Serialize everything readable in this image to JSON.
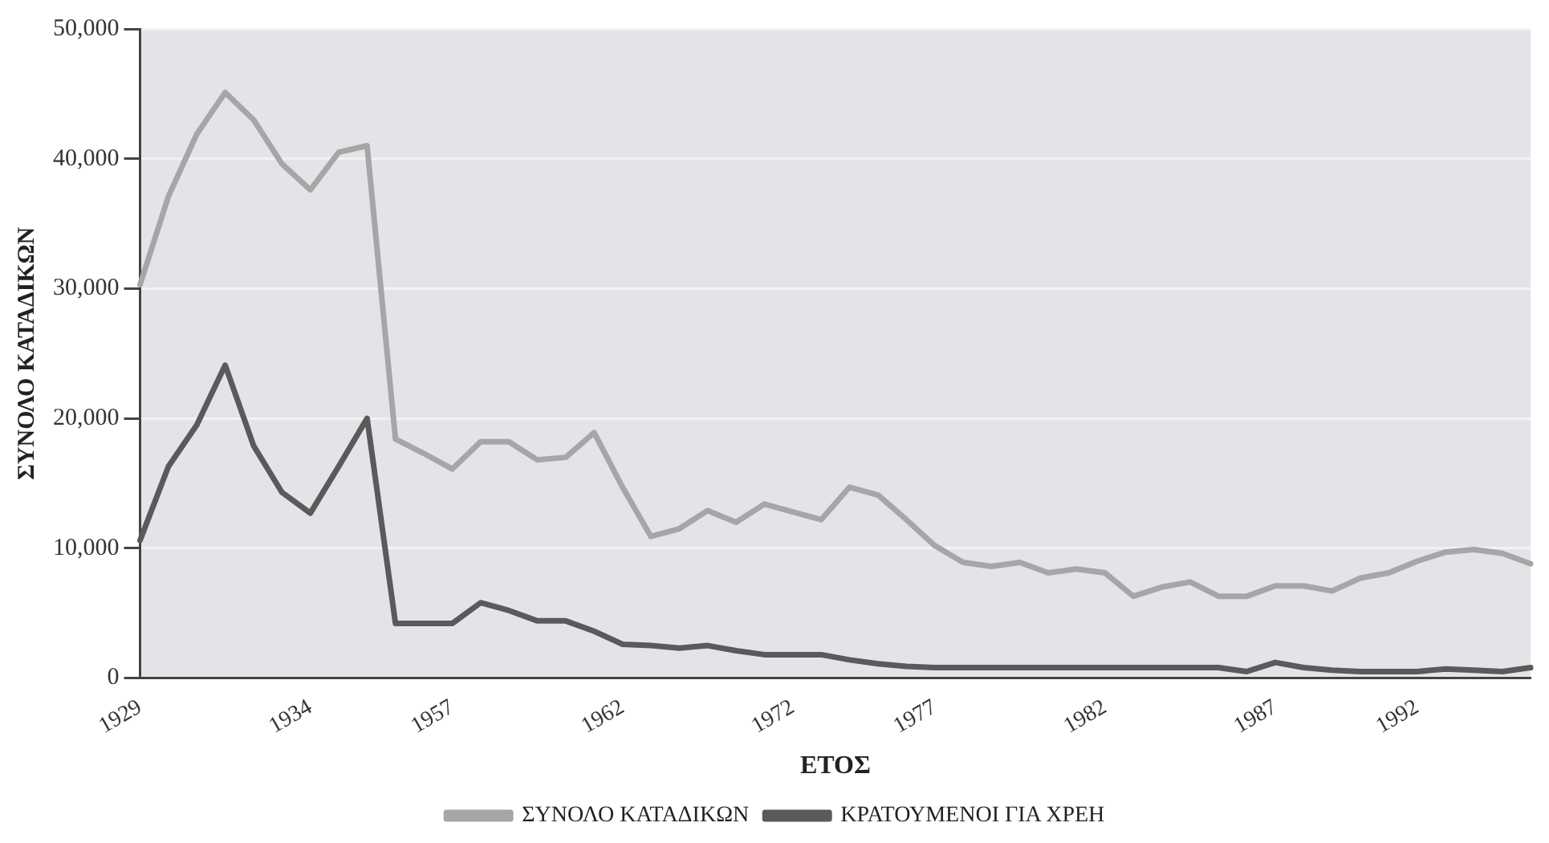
{
  "chart_data": {
    "type": "line",
    "xlabel": "ΕΤΟΣ",
    "ylabel": "ΣΥΝΟΛΟ ΚΑΤΑΔΙΚΩΝ",
    "categories": [
      "1929",
      null,
      null,
      null,
      null,
      null,
      "1934",
      null,
      null,
      null,
      null,
      "1957",
      null,
      null,
      null,
      null,
      null,
      "1962",
      null,
      null,
      null,
      null,
      null,
      "1972",
      null,
      null,
      null,
      null,
      "1977",
      null,
      null,
      null,
      null,
      null,
      "1982",
      null,
      null,
      null,
      null,
      null,
      "1987",
      null,
      null,
      null,
      null,
      "1992",
      null,
      null,
      null,
      null
    ],
    "series": [
      {
        "name": "ΣΥΝΟΛΟ ΚΑΤΑΔΙΚΩΝ",
        "color": "#a6a6a6",
        "values": [
          30300,
          37100,
          41900,
          45100,
          43000,
          39600,
          37600,
          40500,
          41000,
          18400,
          17300,
          16100,
          18200,
          18200,
          16800,
          17000,
          18900,
          14700,
          10900,
          11500,
          12900,
          12000,
          13400,
          12800,
          12200,
          14700,
          14100,
          12200,
          10200,
          8900,
          8600,
          8900,
          8100,
          8400,
          8100,
          6300,
          7000,
          7400,
          6300,
          6300,
          7100,
          7100,
          6700,
          7700,
          8100,
          9000,
          9700,
          9900,
          9600,
          8800
        ]
      },
      {
        "name": "ΚΡΑΤΟΥΜΕΝΟΙ ΓΙΑ ΧΡΕΗ",
        "color": "#5a5a5a",
        "values": [
          10600,
          16300,
          19500,
          24100,
          17900,
          14300,
          12700,
          16300,
          20000,
          4200,
          4200,
          4200,
          5800,
          5200,
          4400,
          4400,
          3600,
          2600,
          2500,
          2300,
          2500,
          2100,
          1800,
          1800,
          1800,
          1400,
          1100,
          900,
          800,
          800,
          800,
          800,
          800,
          800,
          800,
          800,
          800,
          800,
          800,
          500,
          1200,
          800,
          600,
          500,
          500,
          500,
          700,
          600,
          500,
          800
        ]
      }
    ],
    "ylim": [
      0,
      50000
    ],
    "yticks": [
      0,
      {
        "value": 10000,
        "label": "10,000"
      },
      {
        "value": 20000,
        "label": "20,000"
      },
      {
        "value": 30000,
        "label": "30,000"
      },
      {
        "value": 40000,
        "label": "40,000"
      },
      {
        "value": 50000,
        "label": "50,000"
      }
    ],
    "grid": "y",
    "legend": "bottom",
    "marker": "none",
    "line_style": "solid"
  }
}
